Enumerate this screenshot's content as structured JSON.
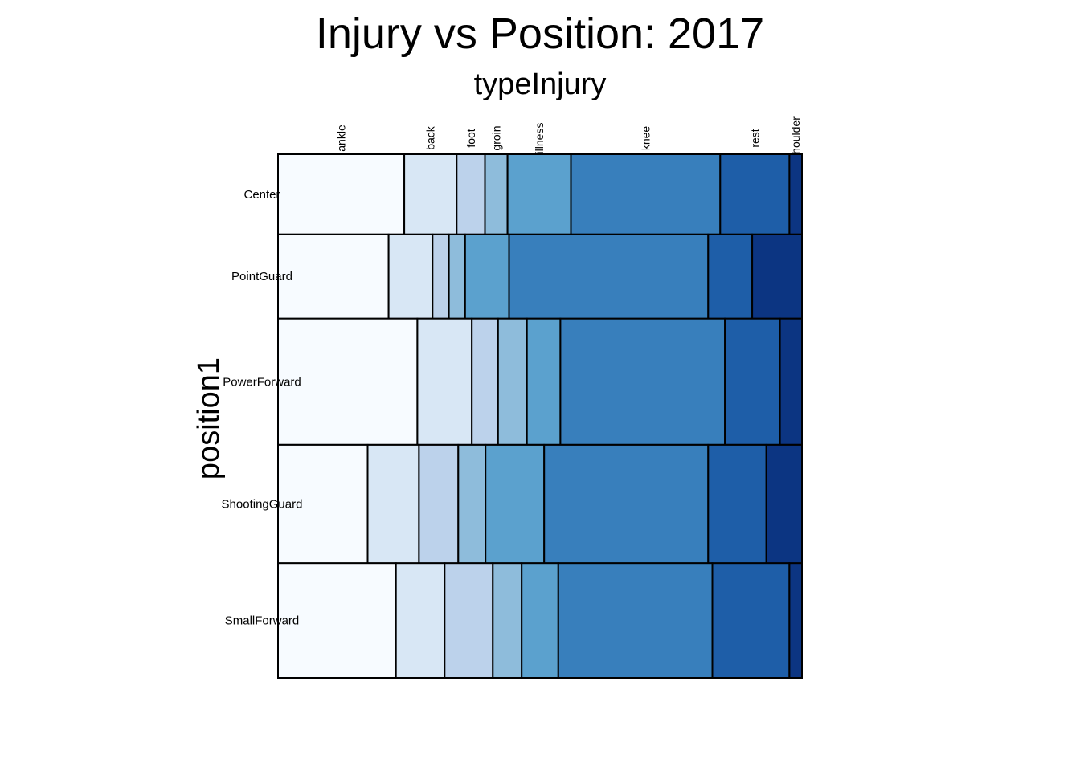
{
  "chart_data": {
    "type": "mosaic",
    "title": "Injury vs Position: 2017",
    "xlabel": "typeInjury",
    "ylabel": "position1",
    "columns": [
      "ankle",
      "back",
      "foot",
      "groin",
      "illness",
      "knee",
      "rest",
      "shoulder"
    ],
    "colors": [
      "#f7fbff",
      "#d8e7f5",
      "#bcd2eb",
      "#8ebcdb",
      "#5ba1ce",
      "#387fbc",
      "#1e5ea8",
      "#0c3582"
    ],
    "rows": [
      {
        "category": "Center",
        "proportion": 0.153,
        "values": [
          0.241,
          0.1,
          0.054,
          0.043,
          0.121,
          0.285,
          0.132,
          0.024
        ]
      },
      {
        "category": "PointGuard",
        "proportion": 0.161,
        "values": [
          0.211,
          0.084,
          0.031,
          0.031,
          0.084,
          0.38,
          0.084,
          0.095
        ]
      },
      {
        "category": "PowerForward",
        "proportion": 0.241,
        "values": [
          0.266,
          0.104,
          0.05,
          0.055,
          0.064,
          0.314,
          0.105,
          0.042
        ]
      },
      {
        "category": "ShootingGuard",
        "proportion": 0.226,
        "values": [
          0.171,
          0.098,
          0.075,
          0.052,
          0.112,
          0.313,
          0.111,
          0.068
        ]
      },
      {
        "category": "SmallForward",
        "proportion": 0.219,
        "values": [
          0.225,
          0.093,
          0.092,
          0.055,
          0.07,
          0.294,
          0.147,
          0.024
        ]
      }
    ]
  }
}
